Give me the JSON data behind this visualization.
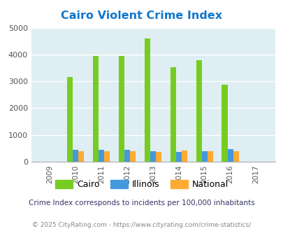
{
  "title": "Cairo Violent Crime Index",
  "years": [
    2009,
    2010,
    2011,
    2012,
    2013,
    2014,
    2015,
    2016,
    2017
  ],
  "cairo": [
    0,
    3170,
    3940,
    3940,
    4600,
    3520,
    3800,
    2870,
    0
  ],
  "illinois": [
    0,
    450,
    450,
    450,
    390,
    370,
    400,
    480,
    0
  ],
  "national": [
    0,
    400,
    400,
    400,
    370,
    430,
    400,
    390,
    0
  ],
  "cairo_color": "#77cc22",
  "illinois_color": "#4499dd",
  "national_color": "#ffaa33",
  "bg_color": "#deeef2",
  "title_color": "#1177cc",
  "ylim": [
    0,
    5000
  ],
  "yticks": [
    0,
    1000,
    2000,
    3000,
    4000,
    5000
  ],
  "subtitle": "Crime Index corresponds to incidents per 100,000 inhabitants",
  "footer": "© 2025 CityRating.com - https://www.cityrating.com/crime-statistics/",
  "legend_labels": [
    "Cairo",
    "Illinois",
    "National"
  ],
  "bar_width": 0.22
}
